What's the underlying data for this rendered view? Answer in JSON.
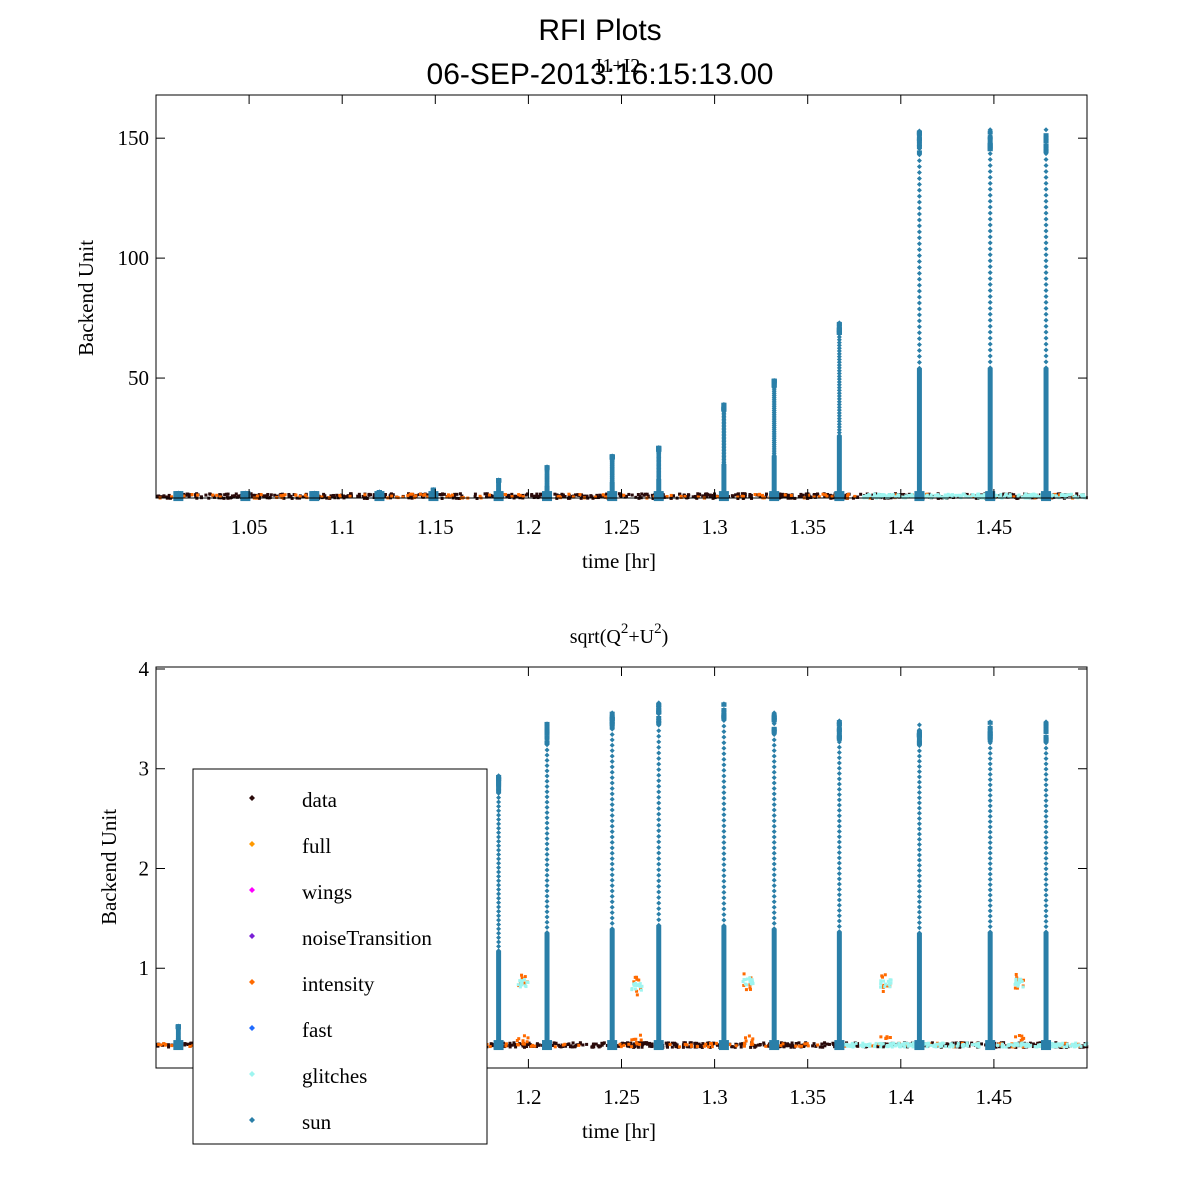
{
  "figure": {
    "title_line1": "RFI Plots",
    "title_line2": "06-SEP-2013:16:15:13.00"
  },
  "colors": {
    "data": "#2a0a0a",
    "full": "#ff9900",
    "wings": "#ff00ff",
    "noiseTransition": "#7a1fd6",
    "intensity": "#ff6a00",
    "fast": "#1f6bff",
    "glitches": "#9ef5f0",
    "sun": "#2a7fa8"
  },
  "chart_data": [
    {
      "type": "scatter",
      "title": "I1+I2",
      "xlabel": "time [hr]",
      "ylabel": "Backend Unit",
      "xlim": [
        1.0,
        1.5
      ],
      "ylim": [
        0,
        168
      ],
      "xticks": [
        1.05,
        1.1,
        1.15,
        1.2,
        1.25,
        1.3,
        1.35,
        1.4,
        1.45
      ],
      "xtick_labels": [
        "1.05",
        "1.1",
        "1.15",
        "1.2",
        "1.25",
        "1.3",
        "1.35",
        "1.4",
        "1.45"
      ],
      "yticks": [
        50,
        100,
        150
      ],
      "ytick_labels": [
        "50",
        "100",
        "150"
      ],
      "baseline": 0.8,
      "sun_spikes": [
        {
          "x": 1.012,
          "peak": 2
        },
        {
          "x": 1.048,
          "peak": 2
        },
        {
          "x": 1.085,
          "peak": 2
        },
        {
          "x": 1.12,
          "peak": 2.5
        },
        {
          "x": 1.149,
          "peak": 3.5
        },
        {
          "x": 1.184,
          "peak": 7.5
        },
        {
          "x": 1.21,
          "peak": 13
        },
        {
          "x": 1.245,
          "peak": 17.5
        },
        {
          "x": 1.27,
          "peak": 21
        },
        {
          "x": 1.305,
          "peak": 39
        },
        {
          "x": 1.332,
          "peak": 49
        },
        {
          "x": 1.367,
          "peak": 73
        },
        {
          "x": 1.41,
          "peak": 153
        },
        {
          "x": 1.448,
          "peak": 153.5
        },
        {
          "x": 1.478,
          "peak": 153.5
        }
      ],
      "glitch_segment": [
        1.38,
        1.5
      ]
    },
    {
      "type": "scatter",
      "title": "sqrt(Q^2+U^2)",
      "title_base": "sqrt(Q",
      "title_sup1": "2",
      "title_mid": "+U",
      "title_sup2": "2",
      "title_end": ")",
      "xlabel": "time [hr]",
      "ylabel": "Backend Unit",
      "xlim": [
        1.0,
        1.5
      ],
      "ylim": [
        0,
        4.02
      ],
      "xticks": [
        1.2,
        1.25,
        1.3,
        1.35,
        1.4,
        1.45
      ],
      "xtick_labels": [
        "1.2",
        "1.25",
        "1.3",
        "1.35",
        "1.4",
        "1.45"
      ],
      "yticks": [
        1,
        2,
        3,
        4
      ],
      "ytick_labels": [
        "1",
        "2",
        "3",
        "4"
      ],
      "baseline": 0.23,
      "sun_spikes": [
        {
          "x": 1.012,
          "peak": 0.42
        },
        {
          "x": 1.184,
          "peak": 2.93
        },
        {
          "x": 1.21,
          "peak": 3.45
        },
        {
          "x": 1.245,
          "peak": 3.56
        },
        {
          "x": 1.27,
          "peak": 3.66
        },
        {
          "x": 1.305,
          "peak": 3.65
        },
        {
          "x": 1.332,
          "peak": 3.56
        },
        {
          "x": 1.367,
          "peak": 3.48
        },
        {
          "x": 1.41,
          "peak": 3.44
        },
        {
          "x": 1.448,
          "peak": 3.47
        },
        {
          "x": 1.478,
          "peak": 3.47
        }
      ],
      "glitch_clusters": [
        {
          "x": 1.197,
          "y": 0.85
        },
        {
          "x": 1.258,
          "y": 0.82
        },
        {
          "x": 1.318,
          "y": 0.87
        },
        {
          "x": 1.392,
          "y": 0.85
        },
        {
          "x": 1.464,
          "y": 0.85
        }
      ],
      "glitch_segment": [
        1.37,
        1.5
      ],
      "legend": [
        {
          "label": "data",
          "key": "data"
        },
        {
          "label": "full",
          "key": "full"
        },
        {
          "label": "wings",
          "key": "wings"
        },
        {
          "label": "noiseTransition",
          "key": "noiseTransition"
        },
        {
          "label": "intensity",
          "key": "intensity"
        },
        {
          "label": "fast",
          "key": "fast"
        },
        {
          "label": "glitches",
          "key": "glitches"
        },
        {
          "label": "sun",
          "key": "sun"
        }
      ]
    }
  ]
}
